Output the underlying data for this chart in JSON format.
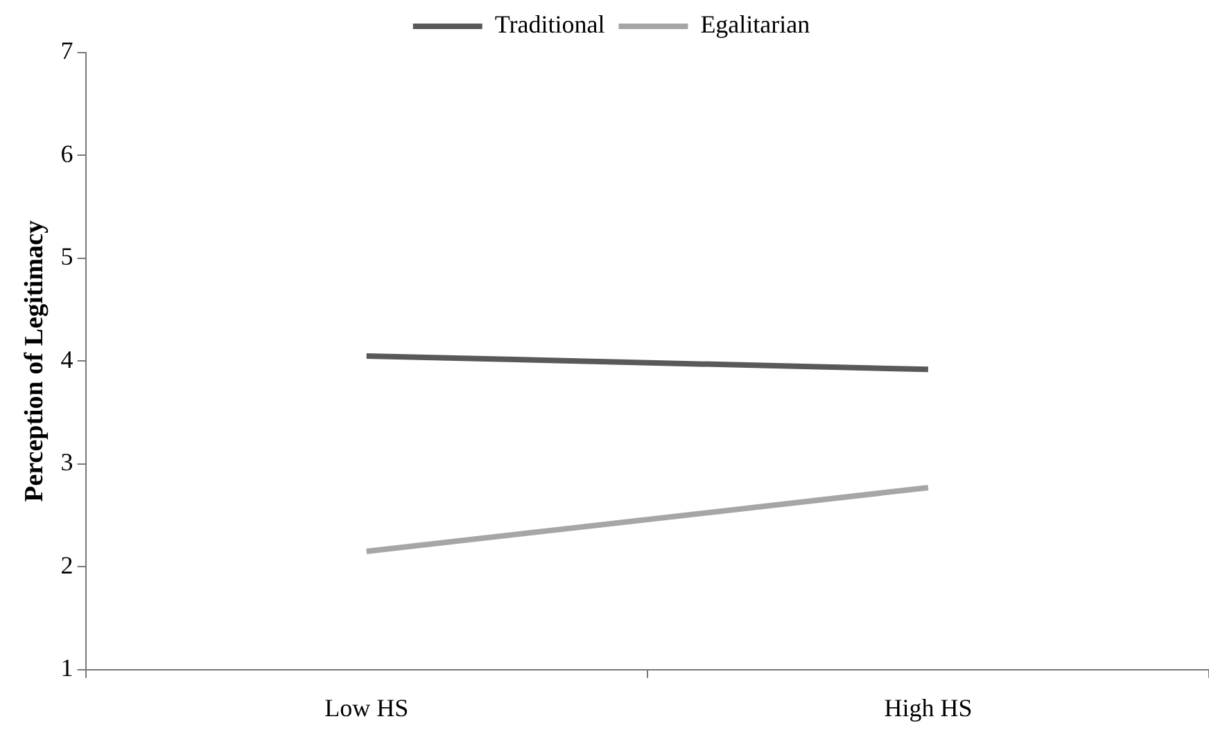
{
  "chart_data": {
    "type": "line",
    "ylabel": "Perception of Legitimacy",
    "categories": [
      "Low HS",
      "High HS"
    ],
    "series": [
      {
        "name": "Traditional",
        "color": "#595959",
        "values": [
          4.05,
          3.92
        ]
      },
      {
        "name": "Egalitarian",
        "color": "#a6a6a6",
        "values": [
          2.15,
          2.77
        ]
      }
    ],
    "ylim": [
      1,
      7
    ],
    "yticks": [
      1,
      2,
      3,
      4,
      5,
      6,
      7
    ],
    "grid": false,
    "legend": "top",
    "marker": "none",
    "line_style": "solid"
  }
}
